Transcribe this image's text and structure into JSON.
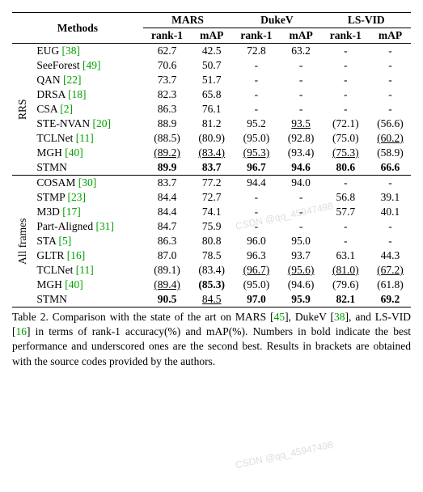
{
  "header": {
    "methods": "Methods",
    "datasets": [
      {
        "name": "MARS",
        "cols": [
          "rank-1",
          "mAP"
        ]
      },
      {
        "name": "DukeV",
        "cols": [
          "rank-1",
          "mAP"
        ]
      },
      {
        "name": "LS-VID",
        "cols": [
          "rank-1",
          "mAP"
        ]
      }
    ]
  },
  "groups": [
    {
      "label": "RRS",
      "rows": [
        {
          "method": "EUG",
          "cite": "[38]",
          "cells": [
            {
              "v": "62.7"
            },
            {
              "v": "42.5"
            },
            {
              "v": "72.8"
            },
            {
              "v": "63.2"
            },
            {
              "v": "-"
            },
            {
              "v": "-"
            }
          ]
        },
        {
          "method": "SeeForest",
          "cite": "[49]",
          "cells": [
            {
              "v": "70.6"
            },
            {
              "v": "50.7"
            },
            {
              "v": "-"
            },
            {
              "v": "-"
            },
            {
              "v": "-"
            },
            {
              "v": "-"
            }
          ]
        },
        {
          "method": "QAN",
          "cite": "[22]",
          "cells": [
            {
              "v": "73.7"
            },
            {
              "v": "51.7"
            },
            {
              "v": "-"
            },
            {
              "v": "-"
            },
            {
              "v": "-"
            },
            {
              "v": "-"
            }
          ]
        },
        {
          "method": "DRSA",
          "cite": "[18]",
          "cells": [
            {
              "v": "82.3"
            },
            {
              "v": "65.8"
            },
            {
              "v": "-"
            },
            {
              "v": "-"
            },
            {
              "v": "-"
            },
            {
              "v": "-"
            }
          ]
        },
        {
          "method": "CSA",
          "cite": "[2]",
          "cells": [
            {
              "v": "86.3"
            },
            {
              "v": "76.1"
            },
            {
              "v": "-"
            },
            {
              "v": "-"
            },
            {
              "v": "-"
            },
            {
              "v": "-"
            }
          ]
        },
        {
          "method": "STE-NVAN",
          "cite": "[20]",
          "cells": [
            {
              "v": "88.9"
            },
            {
              "v": "81.2"
            },
            {
              "v": "95.2"
            },
            {
              "v": "93.5",
              "u": true
            },
            {
              "v": "(72.1)"
            },
            {
              "v": "(56.6)"
            }
          ]
        },
        {
          "method": "TCLNet",
          "cite": "[11]",
          "cells": [
            {
              "v": "(88.5)"
            },
            {
              "v": "(80.9)"
            },
            {
              "v": "(95.0)"
            },
            {
              "v": "(92.8)"
            },
            {
              "v": "(75.0)"
            },
            {
              "v": "(60.2)",
              "u": true
            }
          ]
        },
        {
          "method": "MGH",
          "cite": "[40]",
          "cells": [
            {
              "v": "(89.2)",
              "u": true
            },
            {
              "v": "(83.4)",
              "u": true
            },
            {
              "v": "(95.3)",
              "u": true
            },
            {
              "v": "(93.4)"
            },
            {
              "v": "(75.3)",
              "u": true
            },
            {
              "v": "(58.9)"
            }
          ]
        },
        {
          "method": "STMN",
          "cite": "",
          "cells": [
            {
              "v": "89.9",
              "b": true
            },
            {
              "v": "83.7",
              "b": true
            },
            {
              "v": "96.7",
              "b": true
            },
            {
              "v": "94.6",
              "b": true
            },
            {
              "v": "80.6",
              "b": true
            },
            {
              "v": "66.6",
              "b": true
            }
          ]
        }
      ]
    },
    {
      "label": "All frames",
      "rows": [
        {
          "method": "COSAM",
          "cite": "[30]",
          "cells": [
            {
              "v": "83.7"
            },
            {
              "v": "77.2"
            },
            {
              "v": "94.4"
            },
            {
              "v": "94.0"
            },
            {
              "v": "-"
            },
            {
              "v": "-"
            }
          ]
        },
        {
          "method": "STMP",
          "cite": "[23]",
          "cells": [
            {
              "v": "84.4"
            },
            {
              "v": "72.7"
            },
            {
              "v": "-"
            },
            {
              "v": "-"
            },
            {
              "v": "56.8"
            },
            {
              "v": "39.1"
            }
          ]
        },
        {
          "method": "M3D",
          "cite": "[17]",
          "cells": [
            {
              "v": "84.4"
            },
            {
              "v": "74.1"
            },
            {
              "v": "-"
            },
            {
              "v": "-"
            },
            {
              "v": "57.7"
            },
            {
              "v": "40.1"
            }
          ]
        },
        {
          "method": "Part-Aligned",
          "cite": "[31]",
          "cells": [
            {
              "v": "84.7"
            },
            {
              "v": "75.9"
            },
            {
              "v": "-"
            },
            {
              "v": "-"
            },
            {
              "v": "-"
            },
            {
              "v": "-"
            }
          ]
        },
        {
          "method": "STA",
          "cite": "[5]",
          "cells": [
            {
              "v": "86.3"
            },
            {
              "v": "80.8"
            },
            {
              "v": "96.0"
            },
            {
              "v": "95.0"
            },
            {
              "v": "-"
            },
            {
              "v": "-"
            }
          ]
        },
        {
          "method": "GLTR",
          "cite": "[16]",
          "cells": [
            {
              "v": "87.0"
            },
            {
              "v": "78.5"
            },
            {
              "v": "96.3"
            },
            {
              "v": "93.7"
            },
            {
              "v": "63.1"
            },
            {
              "v": "44.3"
            }
          ]
        },
        {
          "method": "TCLNet",
          "cite": "[11]",
          "cells": [
            {
              "v": "(89.1)"
            },
            {
              "v": "(83.4)"
            },
            {
              "v": "(96.7)",
              "u": true
            },
            {
              "v": "(95.6)",
              "u": true
            },
            {
              "v": "(81.0)",
              "u": true
            },
            {
              "v": "(67.2)",
              "u": true
            }
          ]
        },
        {
          "method": "MGH",
          "cite": "[40]",
          "cells": [
            {
              "v": "(89.4)",
              "u": true
            },
            {
              "v": "(85.3)",
              "b": true
            },
            {
              "v": "(95.0)"
            },
            {
              "v": "(94.6)"
            },
            {
              "v": "(79.6)"
            },
            {
              "v": "(61.8)"
            }
          ]
        },
        {
          "method": "STMN",
          "cite": "",
          "cells": [
            {
              "v": "90.5",
              "b": true
            },
            {
              "v": "84.5",
              "u": true
            },
            {
              "v": "97.0",
              "b": true
            },
            {
              "v": "95.9",
              "b": true
            },
            {
              "v": "82.1",
              "b": true
            },
            {
              "v": "69.2",
              "b": true
            }
          ]
        }
      ]
    }
  ],
  "caption": {
    "label": "Table 2.",
    "text_parts": [
      " Comparison with the state of the art on MARS [",
      "45",
      "], DukeV [",
      "38",
      "], and LS-VID [",
      "16",
      "] in terms of rank-1 accuracy(%) and mAP(%). Numbers in bold indicate the best performance and underscored ones are the second best. Results in brackets are obtained with the source codes provided by the authors."
    ]
  },
  "watermark_top": "CSDN @qq_45947498",
  "watermark_bottom": "CSDN @qq_45947498"
}
